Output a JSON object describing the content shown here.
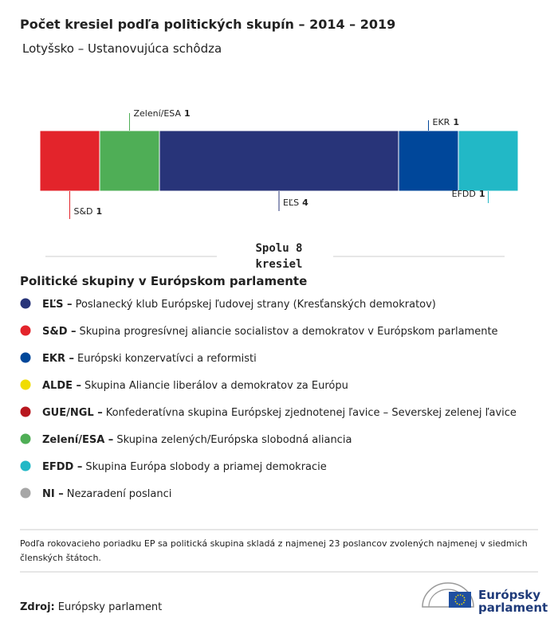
{
  "chart_data": {
    "type": "stacked_bar",
    "title": "Počet kresiel podľa politických skupín – 2014 – 2019",
    "subtitle": "Lotyšsko – Ustanovujúca schôdza",
    "total_label": [
      "Spolu 8",
      "kresiel"
    ],
    "series": [
      {
        "name": "S&D",
        "color": "#e3242b",
        "values": [
          1
        ]
      },
      {
        "name": "Zelení/ESA",
        "color": "#4fae56",
        "values": [
          1
        ]
      },
      {
        "name": "EĽS",
        "color": "#283479",
        "values": [
          4
        ]
      },
      {
        "name": "EKR",
        "color": "#00479a",
        "values": [
          1
        ]
      },
      {
        "name": "EFDD",
        "color": "#22b8c6",
        "values": [
          1
        ]
      }
    ]
  },
  "legend": {
    "title": "Politické skupiny v Európskom parlamente",
    "items": [
      {
        "abbr": "EĽS –",
        "description": "Poslanecký klub Európskej ľudovej strany (Kresťanských demokratov)",
        "color": "#283479"
      },
      {
        "abbr": "S&D –",
        "description": "Skupina progresívnej aliancie socialistov a demokratov v Európskom parlamente",
        "color": "#e3242b"
      },
      {
        "abbr": "EKR –",
        "description": "Európski konzervatívci a reformisti",
        "color": "#00479a"
      },
      {
        "abbr": "ALDE –",
        "description": "Skupina Aliancie liberálov a demokratov za Európu",
        "color": "#f0dc00"
      },
      {
        "abbr": "GUE/NGL –",
        "description": "Konfederatívna skupina Európskej zjednotenej ľavice – Severskej zelenej ľavice",
        "color": "#b8171f"
      },
      {
        "abbr": "Zelení/ESA –",
        "description": "Skupina zelených/Európska slobodná aliancia",
        "color": "#4fae56"
      },
      {
        "abbr": "EFDD –",
        "description": "Skupina Európa slobody a priamej demokracie",
        "color": "#22b8c6"
      },
      {
        "abbr": "NI –",
        "description": "Nezaradení poslanci",
        "color": "#a6a6a6"
      }
    ]
  },
  "footnote": [
    "Podľa rokovacieho poriadku EP sa politická skupina skladá z najmenej 23 poslancov zvolených najmenej v siedmich",
    "členských štátoch."
  ],
  "source": {
    "label": "Zdroj:",
    "text": "Európsky parlament"
  },
  "logo": [
    "Európsky",
    "parlament"
  ]
}
